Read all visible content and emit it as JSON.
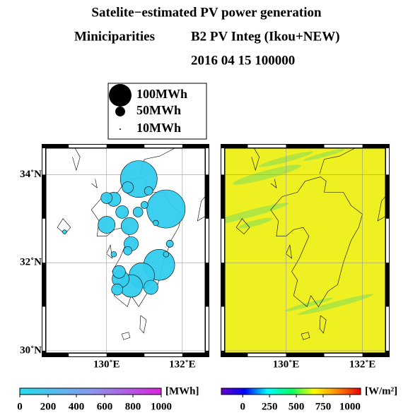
{
  "chart_data": {
    "type": "bubble-map",
    "title": "Satelite−estimated PV power generation",
    "subtitle_left": "Miniciparities",
    "subtitle_right": "B2 PV Integ (Ikou+NEW)",
    "timestamp": "2016 04 15 100000",
    "xlim": [
      128.4,
      132.6
    ],
    "ylim": [
      29.95,
      34.6
    ],
    "xticks": [
      {
        "value": 130,
        "label": "130˚E"
      },
      {
        "value": 132,
        "label": "132˚E"
      }
    ],
    "yticks": [
      {
        "value": 30,
        "label": "30˚N"
      },
      {
        "value": 32,
        "label": "32˚N"
      },
      {
        "value": 34,
        "label": "34˚N"
      }
    ],
    "grid": true,
    "color": "#33ccee",
    "field_color": "#eef022",
    "size_legend": [
      {
        "value": 100,
        "label": "100MWh"
      },
      {
        "value": 50,
        "label": "50MWh"
      },
      {
        "value": 10,
        "label": "10MWh"
      }
    ],
    "x": [
      130.85,
      131.57,
      131.39,
      130.93,
      130.65,
      130.37,
      130.0,
      130.61,
      130.65,
      130.19,
      130.0,
      130.41,
      130.56,
      131.11,
      130.33,
      131.17,
      130.28,
      130.83,
      131.67,
      130.56,
      131.3,
      130.19,
      128.89,
      131.57,
      131.0
    ],
    "y": [
      33.9,
      33.22,
      31.95,
      31.71,
      31.47,
      31.63,
      32.86,
      32.83,
      32.43,
      33.44,
      33.47,
      33.15,
      33.71,
      33.63,
      31.79,
      31.44,
      31.39,
      33.15,
      32.43,
      32.27,
      32.9,
      32.19,
      32.7,
      32.19,
      33.31
    ],
    "sizes": [
      150,
      155,
      130,
      110,
      100,
      79,
      79,
      79,
      68,
      68,
      56,
      62,
      56,
      44,
      62,
      68,
      56,
      50,
      38,
      44,
      31,
      31,
      24,
      31,
      38
    ],
    "colorbars": [
      {
        "label": "[MWh]",
        "lim": [
          0,
          1000
        ],
        "ticks": [
          0,
          200,
          400,
          600,
          800,
          1000
        ],
        "colors": [
          "#22ddee",
          "#8899ee",
          "#dd22dd"
        ]
      },
      {
        "label": "[W/m²]",
        "lim": [
          -200,
          1100
        ],
        "ticks": [
          0,
          250,
          500,
          750,
          1000
        ],
        "colors": [
          "#6600cc",
          "#0000ff",
          "#00ffff",
          "#00ff66",
          "#ffff00",
          "#ff8800",
          "#ee0000"
        ]
      }
    ]
  }
}
